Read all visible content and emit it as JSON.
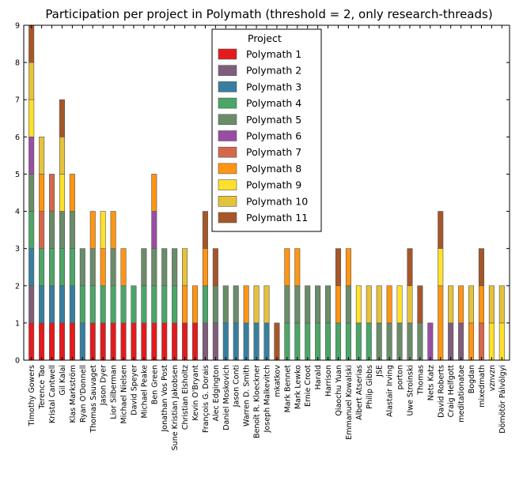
{
  "chart_data": {
    "type": "bar",
    "stacked": true,
    "title": "Participation per project in Polymath (threshold = 2, only research-threads)",
    "xlabel": "",
    "ylabel": "",
    "ylim": [
      0,
      9
    ],
    "yticks": [
      0,
      1,
      2,
      3,
      4,
      5,
      6,
      7,
      8,
      9
    ],
    "grid": false,
    "legend_position": "top-center",
    "legend_title": "Project",
    "categories": [
      "Timothy Gowers",
      "Terence Tao",
      "Kristal Cantwell",
      "Gil Kalai",
      "Klas Markström",
      "Ryan O'Donnell",
      "Thomas Sauvaget",
      "Jason Dyer",
      "Lior Silberman",
      "Michael Nielsen",
      "David Speyer",
      "Michael Peake",
      "Ben Green",
      "Jonathan Vos Post",
      "Sune Kristian Jakobsen",
      "Christian Elsholtz",
      "Kevin O'Bryant",
      "François G. Dorais",
      "Alec Edgington",
      "Daniel Moskovich",
      "Jason Conti",
      "Warren D. Smith",
      "Benoît R. Kloeckner",
      "Joseph Malkevitch",
      "mkatkov",
      "Mark Bennet",
      "Mark Lewko",
      "Ernie Croot",
      "Harald",
      "Harrison",
      "Qiaochu Yuan",
      "Emmanuel Kowalski",
      "Albert Atserias",
      "Philip Gibbs",
      "JSE",
      "Alastair Irving",
      "porton",
      "Uwe Stroinski",
      "Thomas",
      "Nets Katz",
      "David Roberts",
      "Craig Helfgott",
      "meditationatae",
      "Bogdan",
      "mixedmath",
      "vznvzn",
      "Dömötör Pálvölgyi"
    ],
    "series": [
      {
        "name": "Polymath 1",
        "color": "#e41a1c",
        "values": [
          1,
          1,
          1,
          1,
          1,
          0,
          1,
          1,
          1,
          1,
          1,
          1,
          1,
          1,
          1,
          1,
          1,
          0,
          0,
          0,
          0,
          0,
          0,
          0,
          0,
          0,
          0,
          0,
          0,
          0,
          0,
          0,
          0,
          0,
          0,
          0,
          0,
          0,
          0,
          0,
          0,
          0,
          0,
          0,
          0,
          0,
          0
        ]
      },
      {
        "name": "Polymath 2",
        "color": "#7f5d7b",
        "values": [
          1,
          0,
          0,
          0,
          0,
          0,
          0,
          0,
          0,
          0,
          0,
          0,
          0,
          0,
          0,
          0,
          0,
          1,
          1,
          0,
          0,
          0,
          0,
          0,
          0,
          0,
          0,
          0,
          0,
          0,
          0,
          0,
          0,
          0,
          0,
          0,
          0,
          0,
          0,
          0,
          0,
          1,
          1,
          0,
          0,
          0,
          0
        ]
      },
      {
        "name": "Polymath 3",
        "color": "#377fa0",
        "values": [
          1,
          1,
          1,
          1,
          1,
          1,
          0,
          0,
          0,
          0,
          0,
          0,
          0,
          0,
          0,
          0,
          0,
          0,
          0,
          1,
          1,
          1,
          1,
          1,
          0,
          0,
          0,
          0,
          0,
          0,
          0,
          0,
          0,
          0,
          0,
          0,
          0,
          0,
          0,
          0,
          0,
          0,
          0,
          0,
          0,
          0,
          0
        ]
      },
      {
        "name": "Polymath 4",
        "color": "#4ba668",
        "values": [
          1,
          1,
          1,
          1,
          1,
          1,
          1,
          1,
          1,
          1,
          1,
          1,
          1,
          1,
          1,
          0,
          0,
          1,
          0,
          0,
          0,
          0,
          0,
          0,
          0,
          1,
          1,
          1,
          1,
          1,
          1,
          1,
          1,
          1,
          0,
          0,
          0,
          0,
          0,
          0,
          0,
          0,
          0,
          0,
          0,
          0,
          0
        ]
      },
      {
        "name": "Polymath 5",
        "color": "#6a8c69",
        "values": [
          1,
          0,
          1,
          1,
          1,
          1,
          1,
          0,
          1,
          0,
          0,
          1,
          1,
          1,
          1,
          0,
          0,
          0,
          1,
          1,
          1,
          0,
          0,
          0,
          0,
          1,
          1,
          1,
          1,
          1,
          0,
          1,
          0,
          0,
          1,
          1,
          1,
          1,
          1,
          0,
          0,
          0,
          0,
          0,
          0,
          0,
          0
        ]
      },
      {
        "name": "Polymath 6",
        "color": "#984ea3",
        "values": [
          1,
          0,
          0,
          0,
          0,
          0,
          0,
          0,
          0,
          0,
          0,
          0,
          1,
          0,
          0,
          0,
          0,
          0,
          0,
          0,
          0,
          0,
          0,
          0,
          0,
          0,
          0,
          0,
          0,
          0,
          0,
          0,
          0,
          0,
          0,
          0,
          0,
          0,
          0,
          1,
          0,
          0,
          0,
          0,
          0,
          0,
          0
        ]
      },
      {
        "name": "Polymath 7",
        "color": "#d5684a",
        "values": [
          0,
          1,
          1,
          0,
          0,
          0,
          0,
          0,
          0,
          0,
          0,
          0,
          0,
          0,
          0,
          0,
          0,
          0,
          0,
          0,
          0,
          0,
          0,
          0,
          0,
          0,
          0,
          0,
          0,
          0,
          0,
          0,
          0,
          0,
          0,
          0,
          0,
          0,
          0,
          0,
          0,
          0,
          0,
          0,
          1,
          0,
          0
        ]
      },
      {
        "name": "Polymath 8",
        "color": "#ff9513",
        "values": [
          0,
          1,
          0,
          0,
          1,
          0,
          1,
          1,
          1,
          1,
          0,
          0,
          1,
          0,
          0,
          1,
          1,
          1,
          0,
          0,
          0,
          1,
          0,
          0,
          0,
          1,
          1,
          0,
          0,
          0,
          1,
          1,
          0,
          0,
          0,
          1,
          0,
          0,
          0,
          0,
          2,
          0,
          1,
          1,
          1,
          0,
          0
        ]
      },
      {
        "name": "Polymath 9",
        "color": "#ffe02c",
        "values": [
          1,
          0,
          0,
          1,
          0,
          0,
          0,
          1,
          0,
          0,
          0,
          0,
          0,
          0,
          0,
          0,
          0,
          0,
          0,
          0,
          0,
          0,
          0,
          0,
          0,
          0,
          0,
          0,
          0,
          0,
          0,
          0,
          1,
          0,
          0,
          0,
          1,
          0,
          0,
          0,
          1,
          0,
          0,
          0,
          0,
          1,
          1
        ]
      },
      {
        "name": "Polymath 10",
        "color": "#e5c23b",
        "values": [
          1,
          1,
          0,
          1,
          0,
          0,
          0,
          0,
          0,
          0,
          0,
          0,
          0,
          0,
          0,
          1,
          0,
          0,
          0,
          0,
          0,
          0,
          1,
          1,
          0,
          0,
          0,
          0,
          0,
          0,
          0,
          0,
          0,
          1,
          1,
          0,
          0,
          1,
          0,
          0,
          0,
          1,
          0,
          1,
          0,
          1,
          1
        ]
      },
      {
        "name": "Polymath 11",
        "color": "#a65628",
        "values": [
          1,
          0,
          0,
          1,
          0,
          0,
          0,
          0,
          0,
          0,
          0,
          0,
          0,
          0,
          0,
          0,
          0,
          1,
          1,
          0,
          0,
          0,
          0,
          0,
          1,
          0,
          0,
          0,
          0,
          0,
          1,
          0,
          0,
          0,
          0,
          0,
          0,
          1,
          1,
          0,
          1,
          0,
          0,
          0,
          1,
          0,
          0
        ]
      }
    ]
  }
}
